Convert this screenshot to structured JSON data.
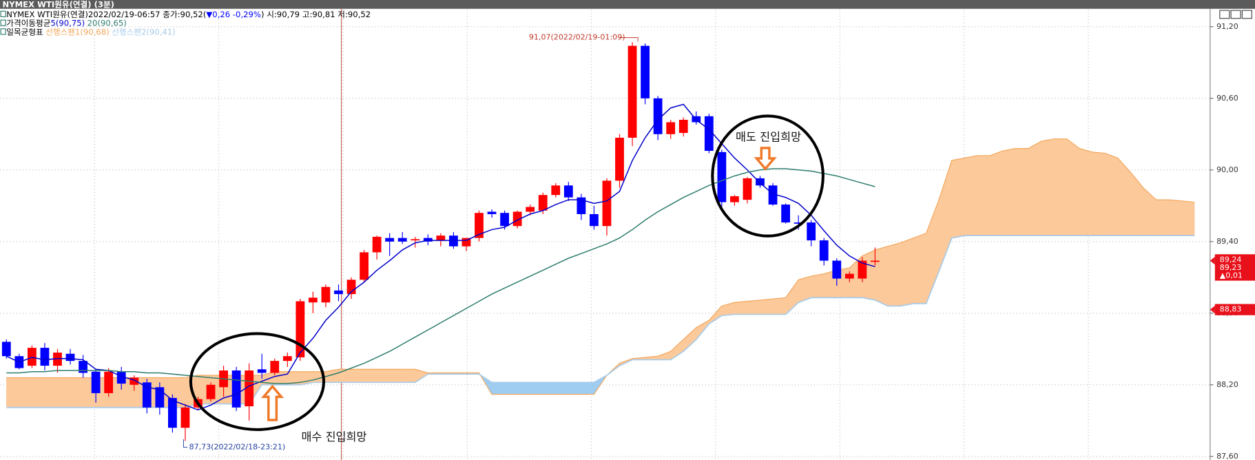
{
  "chart_data": {
    "type": "candlestick",
    "title": "NYMEX WTI원유(연결) (3분)",
    "header": {
      "line1_a": "NYMEX WTI원유(연결)2022/02/19-06:57 종가:90,52(",
      "line1_b": "▼0,26  -0,29%",
      "line1_c": ") 시:90,79 고:90,81 저:90,52"
    },
    "ylim": [
      87.57,
      91.33
    ],
    "yticks": [
      {
        "value": 91.2,
        "label": "91,20"
      },
      {
        "value": 90.6,
        "label": "90,60"
      },
      {
        "value": 90.0,
        "label": "90,00"
      },
      {
        "value": 89.4,
        "label": "89,40"
      },
      {
        "value": 88.8,
        "label": "88,80"
      },
      {
        "value": 88.2,
        "label": "88,20"
      },
      {
        "value": 87.6,
        "label": "87,60"
      }
    ],
    "grid": true,
    "up_color": "#ff0000",
    "down_color": "#0000ff",
    "ohlc": [
      [
        88.56,
        88.58,
        88.42,
        88.44
      ],
      [
        88.44,
        88.46,
        88.33,
        88.34
      ],
      [
        88.36,
        88.53,
        88.34,
        88.51
      ],
      [
        88.51,
        88.55,
        88.32,
        88.36
      ],
      [
        88.36,
        88.5,
        88.3,
        88.47
      ],
      [
        88.46,
        88.5,
        88.37,
        88.4
      ],
      [
        88.4,
        88.45,
        88.26,
        88.3
      ],
      [
        88.31,
        88.33,
        88.05,
        88.13
      ],
      [
        88.13,
        88.34,
        88.1,
        88.31
      ],
      [
        88.31,
        88.35,
        88.16,
        88.21
      ],
      [
        88.2,
        88.28,
        88.15,
        88.26
      ],
      [
        88.22,
        88.25,
        87.96,
        88.01
      ],
      [
        88.18,
        88.22,
        87.95,
        88.01
      ],
      [
        88.09,
        88.12,
        87.8,
        87.84
      ],
      [
        87.84,
        88.04,
        87.73,
        88.01
      ],
      [
        88.01,
        88.1,
        87.99,
        88.08
      ],
      [
        88.08,
        88.22,
        88.06,
        88.2
      ],
      [
        88.18,
        88.36,
        88.1,
        88.32
      ],
      [
        88.32,
        88.35,
        87.98,
        88.01
      ],
      [
        88.02,
        88.38,
        87.9,
        88.32
      ],
      [
        88.33,
        88.46,
        88.25,
        88.3
      ],
      [
        88.3,
        88.42,
        88.28,
        88.4
      ],
      [
        88.4,
        88.47,
        88.35,
        88.44
      ],
      [
        88.43,
        88.92,
        88.4,
        88.9
      ],
      [
        88.89,
        88.98,
        88.8,
        88.93
      ],
      [
        88.89,
        89.04,
        88.85,
        89.02
      ],
      [
        88.99,
        89.04,
        88.9,
        88.96
      ],
      [
        88.96,
        89.1,
        88.92,
        89.08
      ],
      [
        89.08,
        89.33,
        89.06,
        89.31
      ],
      [
        89.31,
        89.45,
        89.25,
        89.44
      ],
      [
        89.43,
        89.47,
        89.28,
        89.4
      ],
      [
        89.43,
        89.48,
        89.38,
        89.4
      ],
      [
        89.41,
        89.44,
        89.35,
        89.42
      ],
      [
        89.43,
        89.46,
        89.37,
        89.4
      ],
      [
        89.41,
        89.47,
        89.36,
        89.45
      ],
      [
        89.45,
        89.48,
        89.34,
        89.36
      ],
      [
        89.36,
        89.43,
        89.32,
        89.43
      ],
      [
        89.43,
        89.66,
        89.4,
        89.64
      ],
      [
        89.65,
        89.67,
        89.6,
        89.63
      ],
      [
        89.64,
        89.66,
        89.5,
        89.53
      ],
      [
        89.53,
        89.66,
        89.51,
        89.65
      ],
      [
        89.65,
        89.71,
        89.62,
        89.69
      ],
      [
        89.66,
        89.81,
        89.63,
        89.79
      ],
      [
        89.79,
        89.89,
        89.77,
        89.87
      ],
      [
        89.87,
        89.9,
        89.74,
        89.77
      ],
      [
        89.77,
        89.8,
        89.58,
        89.63
      ],
      [
        89.63,
        89.7,
        89.5,
        89.53
      ],
      [
        89.53,
        89.93,
        89.45,
        89.91
      ],
      [
        89.91,
        90.3,
        89.85,
        90.27
      ],
      [
        90.27,
        91.07,
        90.2,
        91.04
      ],
      [
        91.04,
        91.06,
        90.55,
        90.6
      ],
      [
        90.6,
        90.62,
        90.25,
        90.3
      ],
      [
        90.3,
        90.42,
        90.26,
        90.4
      ],
      [
        90.31,
        90.44,
        90.28,
        90.42
      ],
      [
        90.45,
        90.49,
        90.38,
        90.4
      ],
      [
        90.45,
        90.47,
        90.14,
        90.16
      ],
      [
        90.15,
        90.17,
        89.68,
        89.73
      ],
      [
        89.73,
        89.79,
        89.7,
        89.78
      ],
      [
        89.75,
        89.94,
        89.72,
        89.93
      ],
      [
        89.93,
        89.95,
        89.85,
        89.87
      ],
      [
        89.87,
        89.89,
        89.7,
        89.71
      ],
      [
        89.71,
        89.72,
        89.55,
        89.56
      ],
      [
        89.56,
        89.62,
        89.5,
        89.55
      ],
      [
        89.56,
        89.58,
        89.36,
        89.41
      ],
      [
        89.41,
        89.43,
        89.2,
        89.24
      ],
      [
        89.24,
        89.26,
        89.03,
        89.09
      ],
      [
        89.09,
        89.15,
        89.06,
        89.13
      ],
      [
        89.09,
        89.27,
        89.06,
        89.24
      ],
      [
        89.23,
        89.35,
        89.2,
        89.24
      ]
    ],
    "ma_label": "가격이동평균",
    "ma": [
      {
        "name": "5(90,75)",
        "color": "#0000cc",
        "values": [
          88.44,
          88.39,
          88.43,
          88.41,
          88.42,
          88.42,
          88.41,
          88.33,
          88.32,
          88.27,
          88.24,
          88.18,
          88.16,
          88.07,
          88.03,
          87.99,
          88.03,
          88.09,
          88.12,
          88.19,
          88.23,
          88.27,
          88.29,
          88.47,
          88.59,
          88.74,
          88.85,
          88.98,
          89.06,
          89.16,
          89.24,
          89.33,
          89.39,
          89.41,
          89.41,
          89.41,
          89.41,
          89.46,
          89.5,
          89.52,
          89.58,
          89.63,
          89.66,
          89.71,
          89.75,
          89.75,
          89.72,
          89.74,
          89.82,
          90.08,
          90.27,
          90.42,
          90.52,
          90.55,
          90.42,
          90.34,
          90.22,
          90.1,
          90.0,
          89.89,
          89.8,
          89.77,
          89.72,
          89.62,
          89.49,
          89.37,
          89.28,
          89.22,
          89.19
        ]
      },
      {
        "name": "20(90,65)",
        "color": "#2e7d6e",
        "values": [
          88.3,
          88.3,
          88.31,
          88.31,
          88.32,
          88.32,
          88.32,
          88.32,
          88.32,
          88.31,
          88.31,
          88.3,
          88.3,
          88.29,
          88.28,
          88.27,
          88.26,
          88.25,
          88.24,
          88.23,
          88.22,
          88.21,
          88.21,
          88.22,
          88.24,
          88.27,
          88.3,
          88.34,
          88.38,
          88.43,
          88.48,
          88.54,
          88.6,
          88.66,
          88.72,
          88.78,
          88.84,
          88.9,
          88.96,
          89.01,
          89.06,
          89.11,
          89.16,
          89.21,
          89.26,
          89.3,
          89.34,
          89.38,
          89.43,
          89.5,
          89.58,
          89.65,
          89.71,
          89.77,
          89.82,
          89.87,
          89.91,
          89.95,
          89.98,
          90.0,
          90.01,
          90.01,
          90.0,
          89.99,
          89.97,
          89.95,
          89.92,
          89.89,
          89.86
        ]
      }
    ],
    "cloud": {
      "label": "일목균형표",
      "up_fill": "#fcc99b",
      "down_fill": "#9fcdf2",
      "span1": {
        "name": "선행스팬1(90,68)",
        "color": "#f2a65a",
        "values": [
          88.26,
          88.26,
          88.26,
          88.26,
          88.26,
          88.26,
          88.26,
          88.26,
          88.26,
          88.26,
          88.26,
          88.26,
          88.26,
          88.26,
          88.26,
          88.28,
          88.28,
          88.28,
          88.28,
          88.28,
          88.28,
          88.31,
          88.31,
          88.31,
          88.31,
          88.31,
          88.33,
          88.33,
          88.33,
          88.33,
          88.33,
          88.33,
          88.33,
          88.3,
          88.3,
          88.3,
          88.3,
          88.3,
          88.12,
          88.12,
          88.12,
          88.12,
          88.12,
          88.12,
          88.12,
          88.12,
          88.12,
          88.28,
          88.38,
          88.42,
          88.43,
          88.44,
          88.48,
          88.58,
          88.68,
          88.74,
          88.86,
          88.89,
          88.9,
          88.91,
          88.92,
          88.93,
          89.08,
          89.11,
          89.13,
          89.16,
          89.18,
          89.28,
          89.33,
          89.36,
          89.39,
          89.43,
          89.47,
          89.75,
          90.08,
          90.1,
          90.12,
          90.12,
          90.16,
          90.18,
          90.18,
          90.24,
          90.26,
          90.26,
          90.18,
          90.15,
          90.14,
          90.1,
          89.98,
          89.85,
          89.75,
          89.75,
          89.74,
          89.73
        ]
      },
      "span2": {
        "name": "선행스팬2(90,41)",
        "color": "#a8cbe8",
        "values": [
          88.01,
          88.01,
          88.01,
          88.01,
          88.01,
          88.01,
          88.01,
          88.01,
          88.01,
          88.01,
          88.01,
          88.01,
          88.01,
          88.01,
          88.01,
          88.04,
          88.04,
          88.04,
          88.04,
          88.04,
          88.2,
          88.2,
          88.2,
          88.2,
          88.22,
          88.22,
          88.22,
          88.22,
          88.22,
          88.22,
          88.22,
          88.22,
          88.22,
          88.29,
          88.29,
          88.29,
          88.29,
          88.29,
          88.22,
          88.22,
          88.22,
          88.22,
          88.22,
          88.22,
          88.22,
          88.22,
          88.22,
          88.28,
          88.36,
          88.41,
          88.41,
          88.41,
          88.41,
          88.48,
          88.58,
          88.71,
          88.78,
          88.79,
          88.79,
          88.79,
          88.79,
          88.79,
          88.89,
          88.93,
          88.93,
          88.93,
          88.93,
          88.93,
          88.91,
          88.86,
          88.86,
          88.88,
          88.88,
          89.15,
          89.43,
          89.45,
          89.45,
          89.45,
          89.45,
          89.45,
          89.45,
          89.45,
          89.45,
          89.45,
          89.45,
          89.45,
          89.45,
          89.45,
          89.45,
          89.45,
          89.45,
          89.45,
          89.45,
          89.45
        ]
      }
    },
    "annotations": {
      "high": "91,07(2022/02/19-01:09)",
      "low": "87,73(2022/02/18-23:21)",
      "sell": "매도 진입희망",
      "buy": "매수 진입희망"
    },
    "price_tags": {
      "last": {
        "value": 89.24,
        "label": "89,24"
      },
      "prev": {
        "value": 89.23,
        "label": "89,23"
      },
      "change": "▲0,01",
      "other": {
        "value": 88.83,
        "label": "88,83"
      }
    }
  }
}
